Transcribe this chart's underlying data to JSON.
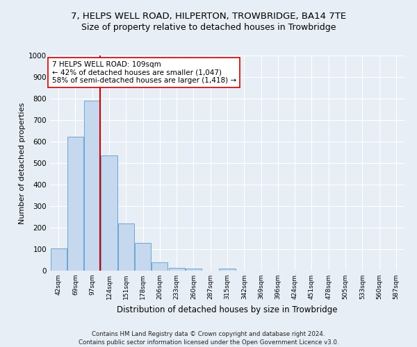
{
  "title1": "7, HELPS WELL ROAD, HILPERTON, TROWBRIDGE, BA14 7TE",
  "title2": "Size of property relative to detached houses in Trowbridge",
  "xlabel": "Distribution of detached houses by size in Trowbridge",
  "ylabel": "Number of detached properties",
  "footnote": "Contains HM Land Registry data © Crown copyright and database right 2024.\nContains public sector information licensed under the Open Government Licence v3.0.",
  "bin_labels": [
    "42sqm",
    "69sqm",
    "97sqm",
    "124sqm",
    "151sqm",
    "178sqm",
    "206sqm",
    "233sqm",
    "260sqm",
    "287sqm",
    "315sqm",
    "342sqm",
    "369sqm",
    "396sqm",
    "424sqm",
    "451sqm",
    "478sqm",
    "505sqm",
    "533sqm",
    "560sqm",
    "587sqm"
  ],
  "bar_values": [
    102,
    622,
    790,
    535,
    220,
    130,
    40,
    13,
    10,
    0,
    10,
    0,
    0,
    0,
    0,
    0,
    0,
    0,
    0,
    0,
    0
  ],
  "bar_color": "#c5d8ed",
  "bar_edge_color": "#5b9bd5",
  "vline_x_index": 2.475,
  "vline_color": "#cc0000",
  "annotation_text": "7 HELPS WELL ROAD: 109sqm\n← 42% of detached houses are smaller (1,047)\n58% of semi-detached houses are larger (1,418) →",
  "annotation_box_color": "#ffffff",
  "annotation_box_edge": "#cc0000",
  "ylim": [
    0,
    1000
  ],
  "yticks": [
    0,
    100,
    200,
    300,
    400,
    500,
    600,
    700,
    800,
    900,
    1000
  ],
  "bg_color": "#e8eef5",
  "axes_bg_color": "#e8eef5",
  "grid_color": "#ffffff",
  "title1_fontsize": 9.5,
  "title2_fontsize": 9,
  "xlabel_fontsize": 8.5,
  "ylabel_fontsize": 8,
  "annot_fontsize": 7.5
}
